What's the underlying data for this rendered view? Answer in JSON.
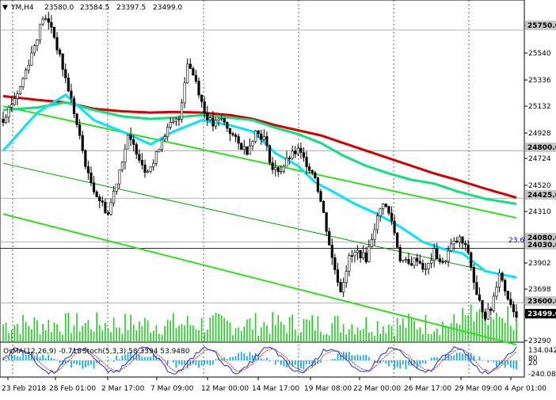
{
  "header": {
    "symbol": "YM,H4",
    "open": "23580.0",
    "high": "23584.5",
    "low": "23397.5",
    "close": "23499.0"
  },
  "indicator_header": {
    "osma": "OsMA(12,26,9) -0.718",
    "stoch": "Stoch(5,3,3) 58.3394 53.9480"
  },
  "price_axis": {
    "ticks": [
      "25750.0",
      "25540",
      "25336",
      "25132",
      "24928",
      "24724",
      "24520",
      "24310",
      "24106",
      "23902",
      "23698",
      "23494",
      "23290"
    ],
    "tagged_levels": [
      "25750.0",
      "24800.0",
      "24425.0",
      "24080.0",
      "24030.0",
      "23600.0",
      "23499.0"
    ]
  },
  "indicator_axis": {
    "ticks": [
      "134.042",
      "80",
      "20",
      "-240.081"
    ]
  },
  "level_label": "23.6",
  "time_axis": {
    "labels": [
      "23 Feb 2018",
      "28 Feb 01:00",
      "2 Mar 17:00",
      "7 Mar 09:00",
      "12 Mar 00:00",
      "14 Mar 17:00",
      "19 Mar 08:00",
      "22 Mar 00:00",
      "26 Mar 17:00",
      "29 Mar 09:00",
      "4 Apr 01:00"
    ]
  },
  "colors": {
    "background": "#ffffff",
    "candle_up": "#00cc00",
    "candle_down": "#c80000",
    "ma_fast": "#00e5ff",
    "ma_mid": "#10e080",
    "ma_slow": "#d00000",
    "channel": "#33dd22",
    "channel_mid": "#009900",
    "volume": "#22cc22",
    "histogram": "#00a8e8",
    "stoch_main": "#1a2fd0",
    "stoch_signal": "#c00000"
  },
  "chart_data": {
    "type": "candlestick",
    "symbol": "YM",
    "timeframe": "H4",
    "ylim": [
      23290,
      25850
    ],
    "close_path_anchors": [
      [
        0,
        25050
      ],
      [
        6,
        25300
      ],
      [
        12,
        25700
      ],
      [
        14,
        25850
      ],
      [
        17,
        25780
      ],
      [
        21,
        25450
      ],
      [
        24,
        25200
      ],
      [
        27,
        24900
      ],
      [
        30,
        24600
      ],
      [
        33,
        24450
      ],
      [
        37,
        24300
      ],
      [
        41,
        24650
      ],
      [
        44,
        24900
      ],
      [
        47,
        24800
      ],
      [
        50,
        24650
      ],
      [
        53,
        24700
      ],
      [
        56,
        24900
      ],
      [
        59,
        25000
      ],
      [
        62,
        25050
      ],
      [
        65,
        25500
      ],
      [
        68,
        25350
      ],
      [
        71,
        25100
      ],
      [
        74,
        25000
      ],
      [
        77,
        25050
      ],
      [
        80,
        24950
      ],
      [
        83,
        24850
      ],
      [
        86,
        24800
      ],
      [
        89,
        24950
      ],
      [
        92,
        24900
      ],
      [
        95,
        24650
      ],
      [
        98,
        24650
      ],
      [
        101,
        24750
      ],
      [
        104,
        24800
      ],
      [
        107,
        24700
      ],
      [
        110,
        24600
      ],
      [
        113,
        24300
      ],
      [
        116,
        23950
      ],
      [
        119,
        23700
      ],
      [
        122,
        23950
      ],
      [
        125,
        24000
      ],
      [
        128,
        23950
      ],
      [
        131,
        24200
      ],
      [
        134,
        24400
      ],
      [
        137,
        24250
      ],
      [
        140,
        23950
      ],
      [
        143,
        23900
      ],
      [
        146,
        23950
      ],
      [
        149,
        23850
      ],
      [
        152,
        24000
      ],
      [
        155,
        23900
      ],
      [
        158,
        24050
      ],
      [
        161,
        24100
      ],
      [
        164,
        24000
      ],
      [
        167,
        23650
      ],
      [
        170,
        23500
      ],
      [
        172,
        23550
      ],
      [
        175,
        23850
      ],
      [
        177,
        23700
      ],
      [
        179,
        23600
      ],
      [
        181,
        23499
      ]
    ],
    "overlays": {
      "ma_fast_path": [
        [
          0,
          24800
        ],
        [
          12,
          25100
        ],
        [
          22,
          25240
        ],
        [
          32,
          25040
        ],
        [
          42,
          24950
        ],
        [
          52,
          24850
        ],
        [
          60,
          24950
        ],
        [
          70,
          25040
        ],
        [
          80,
          25000
        ],
        [
          88,
          24950
        ],
        [
          96,
          24780
        ],
        [
          104,
          24680
        ],
        [
          110,
          24550
        ],
        [
          116,
          24480
        ],
        [
          124,
          24380
        ],
        [
          132,
          24300
        ],
        [
          140,
          24200
        ],
        [
          148,
          24080
        ],
        [
          156,
          24020
        ],
        [
          162,
          23990
        ],
        [
          170,
          23850
        ],
        [
          181,
          23800
        ]
      ],
      "ma_mid_path": [
        [
          0,
          25120
        ],
        [
          12,
          25140
        ],
        [
          22,
          25180
        ],
        [
          32,
          25120
        ],
        [
          42,
          25070
        ],
        [
          52,
          25050
        ],
        [
          60,
          25060
        ],
        [
          70,
          25080
        ],
        [
          80,
          25060
        ],
        [
          88,
          25040
        ],
        [
          96,
          24980
        ],
        [
          104,
          24930
        ],
        [
          112,
          24860
        ],
        [
          120,
          24760
        ],
        [
          128,
          24680
        ],
        [
          136,
          24620
        ],
        [
          144,
          24570
        ],
        [
          152,
          24540
        ],
        [
          160,
          24480
        ],
        [
          170,
          24420
        ],
        [
          181,
          24380
        ]
      ],
      "ma_slow_path": [
        [
          0,
          25230
        ],
        [
          12,
          25200
        ],
        [
          22,
          25180
        ],
        [
          32,
          25130
        ],
        [
          42,
          25110
        ],
        [
          52,
          25100
        ],
        [
          60,
          25105
        ],
        [
          70,
          25100
        ],
        [
          80,
          25080
        ],
        [
          88,
          25050
        ],
        [
          96,
          25000
        ],
        [
          104,
          24960
        ],
        [
          112,
          24920
        ],
        [
          120,
          24860
        ],
        [
          128,
          24800
        ],
        [
          136,
          24740
        ],
        [
          144,
          24680
        ],
        [
          152,
          24620
        ],
        [
          160,
          24570
        ],
        [
          170,
          24500
        ],
        [
          181,
          24430
        ]
      ],
      "channel_upper": [
        [
          0,
          25150
        ],
        [
          181,
          24270
        ]
      ],
      "channel_lower": [
        [
          0,
          24300
        ],
        [
          181,
          23270
        ]
      ],
      "channel_mid": [
        [
          0,
          24700
        ],
        [
          181,
          23800
        ]
      ]
    }
  }
}
